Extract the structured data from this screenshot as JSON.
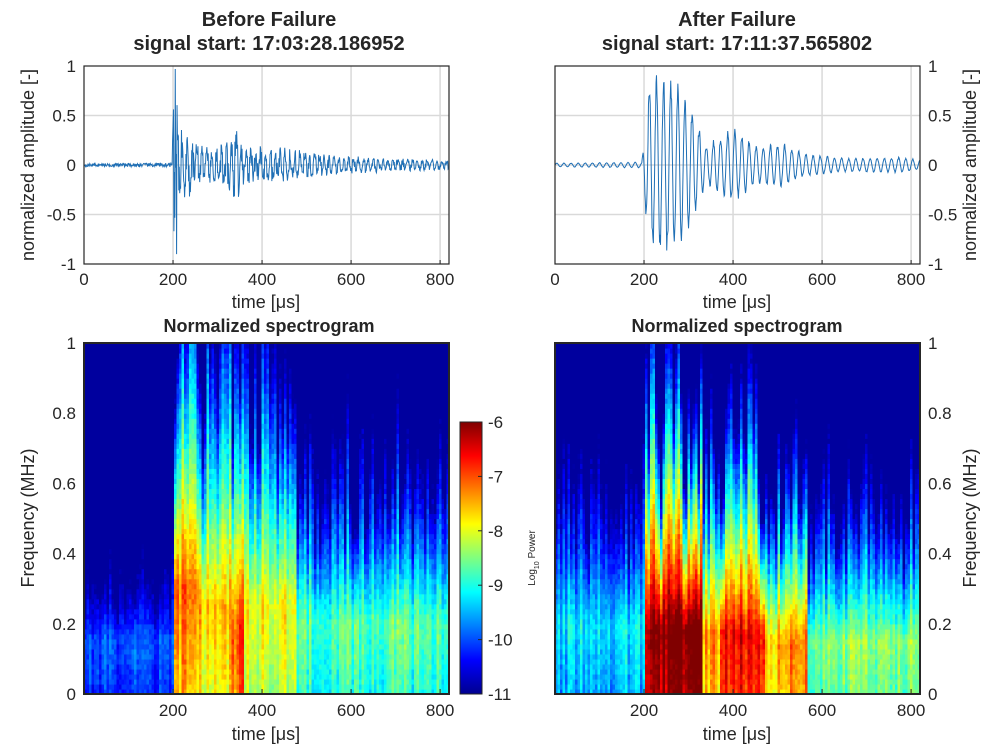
{
  "chart_data": [
    {
      "type": "line",
      "panel": "top-left",
      "title": "Before Failure",
      "subtitle": "signal start: 17:03:28.186952",
      "xlabel": "time [μs]",
      "ylabel": "normalized amplitude [-]",
      "xlim": [
        0,
        820
      ],
      "ylim": [
        -1,
        1
      ],
      "xticks": [
        "0",
        "200",
        "400",
        "600",
        "800"
      ],
      "yticks": [
        "-1",
        "-0.5",
        "0",
        "0.5",
        "1"
      ],
      "grid": true,
      "series_color": "#1f6fb5",
      "envelope": [
        {
          "t": 0,
          "amp": 0.015
        },
        {
          "t": 198,
          "amp": 0.02
        },
        {
          "t": 202,
          "amp": 0.95
        },
        {
          "t": 215,
          "amp": 0.45
        },
        {
          "t": 260,
          "amp": 0.2
        },
        {
          "t": 300,
          "amp": 0.17
        },
        {
          "t": 340,
          "amp": 0.42
        },
        {
          "t": 360,
          "amp": 0.2
        },
        {
          "t": 450,
          "amp": 0.18
        },
        {
          "t": 500,
          "amp": 0.14
        },
        {
          "t": 600,
          "amp": 0.09
        },
        {
          "t": 700,
          "amp": 0.07
        },
        {
          "t": 820,
          "amp": 0.05
        }
      ],
      "peak_positive": {
        "x": 205,
        "y": 0.97
      },
      "peak_negative": {
        "x": 208,
        "y": -0.9
      }
    },
    {
      "type": "line",
      "panel": "top-right",
      "title": "After Failure",
      "subtitle": "signal start: 17:11:37.565802",
      "xlabel": "time [μs]",
      "ylabel": "normalized amplitude [-]",
      "xlim": [
        0,
        820
      ],
      "ylim": [
        -1,
        1
      ],
      "xticks": [
        "0",
        "200",
        "400",
        "600",
        "800"
      ],
      "yticks": [
        "-1",
        "-0.5",
        "0",
        "0.5",
        "1"
      ],
      "grid": true,
      "series_color": "#1f6fb5",
      "envelope": [
        {
          "t": 0,
          "amp": 0.02
        },
        {
          "t": 195,
          "amp": 0.03
        },
        {
          "t": 210,
          "amp": 0.9
        },
        {
          "t": 260,
          "amp": 0.95
        },
        {
          "t": 300,
          "amp": 0.7
        },
        {
          "t": 340,
          "amp": 0.2
        },
        {
          "t": 400,
          "amp": 0.4
        },
        {
          "t": 450,
          "amp": 0.2
        },
        {
          "t": 510,
          "amp": 0.23
        },
        {
          "t": 560,
          "amp": 0.12
        },
        {
          "t": 650,
          "amp": 0.07
        },
        {
          "t": 780,
          "amp": 0.08
        },
        {
          "t": 820,
          "amp": 0.05
        }
      ]
    },
    {
      "type": "heatmap",
      "panel": "bottom-left",
      "title": "Normalized spectrogram",
      "xlabel": "time [μs]",
      "ylabel": "Frequency (MHz)",
      "xlim": [
        0,
        820
      ],
      "ylim": [
        0,
        1
      ],
      "xticks": [
        "200",
        "400",
        "600",
        "800"
      ],
      "yticks": [
        "0",
        "0.2",
        "0.4",
        "0.6",
        "0.8",
        "1"
      ],
      "colormap": "jet",
      "clim": [
        -11,
        -6
      ],
      "zones": [
        {
          "t_from": 0,
          "t_to": 200,
          "peak_freq": 0.15,
          "band": 0.4,
          "level": -10.0
        },
        {
          "t_from": 200,
          "t_to": 260,
          "peak_freq": 0.3,
          "band": 0.45,
          "level": -7.2
        },
        {
          "t_from": 260,
          "t_to": 330,
          "peak_freq": 0.25,
          "band": 0.45,
          "level": -7.6
        },
        {
          "t_from": 330,
          "t_to": 360,
          "peak_freq": 0.18,
          "band": 0.4,
          "level": -7.0
        },
        {
          "t_from": 360,
          "t_to": 480,
          "peak_freq": 0.25,
          "band": 0.45,
          "level": -7.9
        },
        {
          "t_from": 480,
          "t_to": 820,
          "peak_freq": 0.2,
          "band": 0.4,
          "level": -8.7
        }
      ]
    },
    {
      "type": "heatmap",
      "panel": "bottom-right",
      "title": "Normalized spectrogram",
      "xlabel": "time [μs]",
      "ylabel": "Frequency (MHz)",
      "xlim": [
        0,
        820
      ],
      "ylim": [
        0,
        1
      ],
      "xticks": [
        "200",
        "400",
        "600",
        "800"
      ],
      "yticks": [
        "0",
        "0.2",
        "0.4",
        "0.6",
        "0.8",
        "1"
      ],
      "colormap": "jet",
      "clim": [
        -11,
        -6
      ],
      "zones": [
        {
          "t_from": 0,
          "t_to": 200,
          "peak_freq": 0.2,
          "band": 0.45,
          "level": -9.3
        },
        {
          "t_from": 200,
          "t_to": 330,
          "peak_freq": 0.18,
          "band": 0.3,
          "level": -6.0
        },
        {
          "t_from": 330,
          "t_to": 370,
          "peak_freq": 0.18,
          "band": 0.3,
          "level": -7.4
        },
        {
          "t_from": 370,
          "t_to": 470,
          "peak_freq": 0.17,
          "band": 0.28,
          "level": -6.6
        },
        {
          "t_from": 470,
          "t_to": 500,
          "peak_freq": 0.15,
          "band": 0.28,
          "level": -7.8
        },
        {
          "t_from": 500,
          "t_to": 570,
          "peak_freq": 0.15,
          "band": 0.28,
          "level": -7.3
        },
        {
          "t_from": 570,
          "t_to": 820,
          "peak_freq": 0.15,
          "band": 0.35,
          "level": -8.5
        }
      ]
    }
  ],
  "colorbar": {
    "ticks": [
      "-6",
      "-7",
      "-8",
      "-9",
      "-10",
      "-11"
    ],
    "label": "Log10 Power",
    "label_base": "Log",
    "label_sub": "10",
    "label_rest": " Power"
  }
}
